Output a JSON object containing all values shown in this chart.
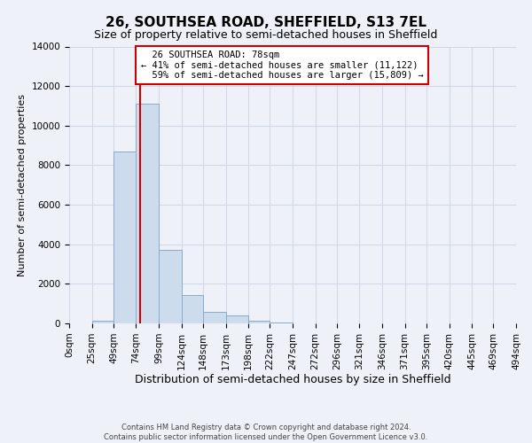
{
  "title": "26, SOUTHSEA ROAD, SHEFFIELD, S13 7EL",
  "subtitle": "Size of property relative to semi-detached houses in Sheffield",
  "xlabel": "Distribution of semi-detached houses by size in Sheffield",
  "ylabel": "Number of semi-detached properties",
  "property_size": 78,
  "property_label": "26 SOUTHSEA ROAD: 78sqm",
  "pct_smaller": 41,
  "pct_larger": 59,
  "n_smaller": 11122,
  "n_larger": 15809,
  "bin_edges": [
    0,
    25,
    49,
    74,
    99,
    124,
    148,
    173,
    198,
    222,
    247,
    272,
    296,
    321,
    346,
    371,
    395,
    420,
    445,
    469,
    494
  ],
  "bin_labels": [
    "0sqm",
    "25sqm",
    "49sqm",
    "74sqm",
    "99sqm",
    "124sqm",
    "148sqm",
    "173sqm",
    "198sqm",
    "222sqm",
    "247sqm",
    "272sqm",
    "296sqm",
    "321sqm",
    "346sqm",
    "371sqm",
    "395sqm",
    "420sqm",
    "445sqm",
    "469sqm",
    "494sqm"
  ],
  "bar_values": [
    0,
    150,
    8700,
    11100,
    3700,
    1450,
    600,
    420,
    130,
    30,
    10,
    5,
    3,
    1,
    0,
    0,
    0,
    0,
    0,
    0
  ],
  "bar_color": "#ccdcec",
  "bar_edge_color": "#88aac8",
  "vline_color": "#cc0000",
  "vline_x": 78,
  "ylim": [
    0,
    14000
  ],
  "yticks": [
    0,
    2000,
    4000,
    6000,
    8000,
    10000,
    12000,
    14000
  ],
  "grid_color": "#d0d8e8",
  "bg_color": "#eef2f8",
  "title_fontsize": 11,
  "subtitle_fontsize": 9,
  "xlabel_fontsize": 9,
  "ylabel_fontsize": 8,
  "tick_fontsize": 7.5,
  "footnote": "Contains HM Land Registry data © Crown copyright and database right 2024.\nContains public sector information licensed under the Open Government Licence v3.0."
}
